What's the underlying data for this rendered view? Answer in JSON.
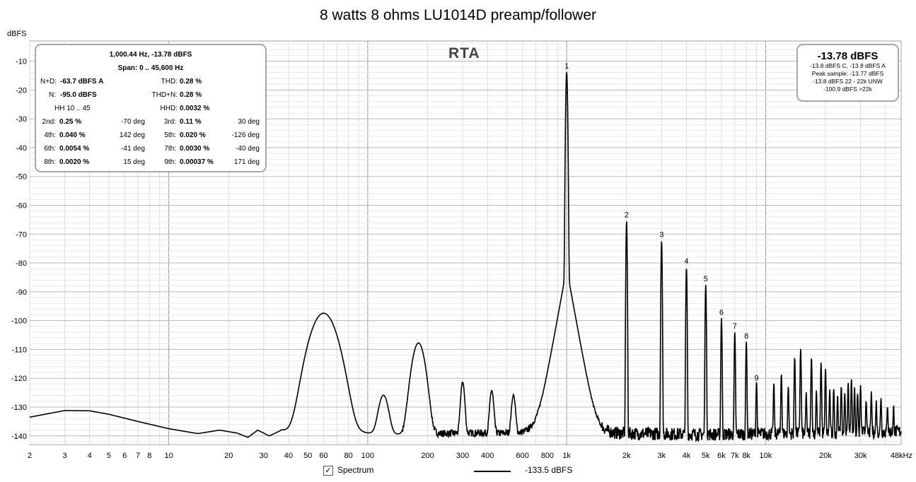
{
  "chart_data": {
    "type": "line",
    "title": "8 watts 8 ohms LU1014D preamp/follower",
    "ylabel": "dBFS",
    "xscale": "log",
    "xlim": [
      2,
      48000
    ],
    "ylim": [
      -143,
      -3
    ],
    "grid": true,
    "watermark": "RTA",
    "x_ticks": [
      {
        "v": 2,
        "label": "2"
      },
      {
        "v": 3,
        "label": "3"
      },
      {
        "v": 4,
        "label": "4"
      },
      {
        "v": 5,
        "label": "5"
      },
      {
        "v": 6,
        "label": "6"
      },
      {
        "v": 7,
        "label": "7"
      },
      {
        "v": 8,
        "label": "8"
      },
      {
        "v": 10,
        "label": "10"
      },
      {
        "v": 20,
        "label": "20"
      },
      {
        "v": 30,
        "label": "30"
      },
      {
        "v": 40,
        "label": "40"
      },
      {
        "v": 50,
        "label": "50"
      },
      {
        "v": 60,
        "label": "60"
      },
      {
        "v": 80,
        "label": "80"
      },
      {
        "v": 100,
        "label": "100"
      },
      {
        "v": 200,
        "label": "200"
      },
      {
        "v": 300,
        "label": "300"
      },
      {
        "v": 400,
        "label": "400"
      },
      {
        "v": 600,
        "label": "600"
      },
      {
        "v": 800,
        "label": "800"
      },
      {
        "v": 1000,
        "label": "1k"
      },
      {
        "v": 2000,
        "label": "2k"
      },
      {
        "v": 3000,
        "label": "3k"
      },
      {
        "v": 4000,
        "label": "4k"
      },
      {
        "v": 5000,
        "label": "5k"
      },
      {
        "v": 6000,
        "label": "6k"
      },
      {
        "v": 7000,
        "label": "7k"
      },
      {
        "v": 8000,
        "label": "8k"
      },
      {
        "v": 10000,
        "label": "10k"
      },
      {
        "v": 20000,
        "label": "20k"
      },
      {
        "v": 30000,
        "label": "30k"
      },
      {
        "v": 48000,
        "label": "48kHz"
      }
    ],
    "y_ticks": [
      -10,
      -20,
      -30,
      -40,
      -50,
      -60,
      -70,
      -80,
      -90,
      -100,
      -110,
      -120,
      -130,
      -140
    ],
    "series": [
      {
        "name": "Spectrum",
        "color": "#000000",
        "floor": [
          [
            2,
            -133.5
          ],
          [
            3,
            -131.2
          ],
          [
            4,
            -131.3
          ],
          [
            5,
            -132.5
          ],
          [
            7,
            -135
          ],
          [
            10,
            -137.5
          ],
          [
            14,
            -139.2
          ],
          [
            18,
            -138
          ],
          [
            22,
            -139
          ],
          [
            25,
            -140.5
          ],
          [
            28,
            -138
          ],
          [
            32,
            -140
          ],
          [
            37,
            -138
          ],
          [
            42,
            -139
          ],
          [
            45,
            -141
          ],
          [
            50,
            -140
          ],
          [
            53,
            -141.5
          ],
          [
            70,
            -138
          ],
          [
            100,
            -139
          ],
          [
            150,
            -139.5
          ],
          [
            300,
            -139
          ],
          [
            600,
            -139
          ],
          [
            900,
            -138
          ],
          [
            1500,
            -139
          ],
          [
            5000,
            -139.5
          ],
          [
            20000,
            -139
          ],
          [
            48000,
            -138.5
          ]
        ],
        "peaks": [
          {
            "f": 60,
            "db": -97.5,
            "width": 0.05
          },
          {
            "f": 120,
            "db": -128,
            "width": 0.02
          },
          {
            "f": 180,
            "db": -108,
            "width": 0.025
          },
          {
            "f": 300,
            "db": -122.5,
            "width": 0.008
          },
          {
            "f": 420,
            "db": -126,
            "width": 0.008
          },
          {
            "f": 540,
            "db": -128,
            "width": 0.008
          },
          {
            "f": 1000,
            "db": -13.8,
            "width": 0.003,
            "label": "1"
          },
          {
            "f": 2000,
            "db": -65.4,
            "width": 0.002,
            "label": "2"
          },
          {
            "f": 3000,
            "db": -72.3,
            "width": 0.002,
            "label": "3"
          },
          {
            "f": 4000,
            "db": -81.5,
            "width": 0.002,
            "label": "4"
          },
          {
            "f": 5000,
            "db": -87.6,
            "width": 0.002,
            "label": "5"
          },
          {
            "f": 6000,
            "db": -99.2,
            "width": 0.002,
            "label": "6"
          },
          {
            "f": 7000,
            "db": -104,
            "width": 0.002,
            "label": "7"
          },
          {
            "f": 8000,
            "db": -107.5,
            "width": 0.002,
            "label": "8"
          },
          {
            "f": 9000,
            "db": -122,
            "width": 0.002,
            "label": "9"
          },
          {
            "f": 11000,
            "db": -123,
            "width": 0.002
          },
          {
            "f": 12000,
            "db": -119,
            "width": 0.002
          },
          {
            "f": 13000,
            "db": -124,
            "width": 0.002
          },
          {
            "f": 14000,
            "db": -113,
            "width": 0.002
          },
          {
            "f": 15000,
            "db": -110,
            "width": 0.002
          },
          {
            "f": 16000,
            "db": -127,
            "width": 0.002
          },
          {
            "f": 17000,
            "db": -113,
            "width": 0.002
          },
          {
            "f": 18000,
            "db": -126,
            "width": 0.002
          },
          {
            "f": 19000,
            "db": -115,
            "width": 0.002
          },
          {
            "f": 20000,
            "db": -117,
            "width": 0.002
          },
          {
            "f": 21000,
            "db": -126,
            "width": 0.002
          },
          {
            "f": 22000,
            "db": -125,
            "width": 0.002
          },
          {
            "f": 23000,
            "db": -128,
            "width": 0.002
          },
          {
            "f": 24000,
            "db": -124,
            "width": 0.002
          },
          {
            "f": 25000,
            "db": -127,
            "width": 0.002
          },
          {
            "f": 26000,
            "db": -123,
            "width": 0.002
          },
          {
            "f": 27000,
            "db": -121,
            "width": 0.002
          },
          {
            "f": 28000,
            "db": -125,
            "width": 0.002
          },
          {
            "f": 29000,
            "db": -127,
            "width": 0.002
          },
          {
            "f": 30000,
            "db": -124,
            "width": 0.002
          },
          {
            "f": 32000,
            "db": -130,
            "width": 0.002
          },
          {
            "f": 34000,
            "db": -127,
            "width": 0.002
          },
          {
            "f": 36000,
            "db": -131,
            "width": 0.002
          },
          {
            "f": 38000,
            "db": -129,
            "width": 0.002
          },
          {
            "f": 41000,
            "db": -133,
            "width": 0.002
          },
          {
            "f": 44000,
            "db": -134,
            "width": 0.002
          }
        ]
      }
    ]
  },
  "stats_panel": {
    "header": "1,000.44 Hz, -13.78 dBFS",
    "span": "Span: 0 .. 45,600 Hz",
    "nd_label": "N+D:",
    "nd_value": "-63.7 dBFS A",
    "thd_label": "THD:",
    "thd_value": "0.28 %",
    "n_label": "N:",
    "n_value": "-95.0 dBFS",
    "thdn_label": "THD+N:",
    "thdn_value": "0.28 %",
    "hh_label": "HH 10 .. 45",
    "hhd_label": "HHD:",
    "hhd_value": "0.0032 %",
    "harmonics": [
      {
        "l1": "2nd:",
        "v1": "0.25 %",
        "d1": "-70 deg",
        "l2": "3rd:",
        "v2": "0.11 %",
        "d2": "30 deg"
      },
      {
        "l1": "4th:",
        "v1": "0.040 %",
        "d1": "142 deg",
        "l2": "5th:",
        "v2": "0.020 %",
        "d2": "-126 deg"
      },
      {
        "l1": "6th:",
        "v1": "0.0054 %",
        "d1": "-41 deg",
        "l2": "7th:",
        "v2": "0.0030 %",
        "d2": "-40 deg"
      },
      {
        "l1": "8th:",
        "v1": "0.0020 %",
        "d1": "15 deg",
        "l2": "9th:",
        "v2": "0.00037 %",
        "d2": "171 deg"
      }
    ]
  },
  "peak_panel": {
    "value": "-13.78 dBFS",
    "line1": "-13.8 dBFS C, -13.8 dBFS A",
    "line2": "Peak sample: -13.77 dBFS",
    "line3": "-13.8 dBFS 22 - 22k UNW",
    "line4": "-100.9 dBFS >22k"
  },
  "legend": {
    "checkbox_mark": "✓",
    "series_label": "Spectrum",
    "level_label": "-133.5 dBFS"
  }
}
